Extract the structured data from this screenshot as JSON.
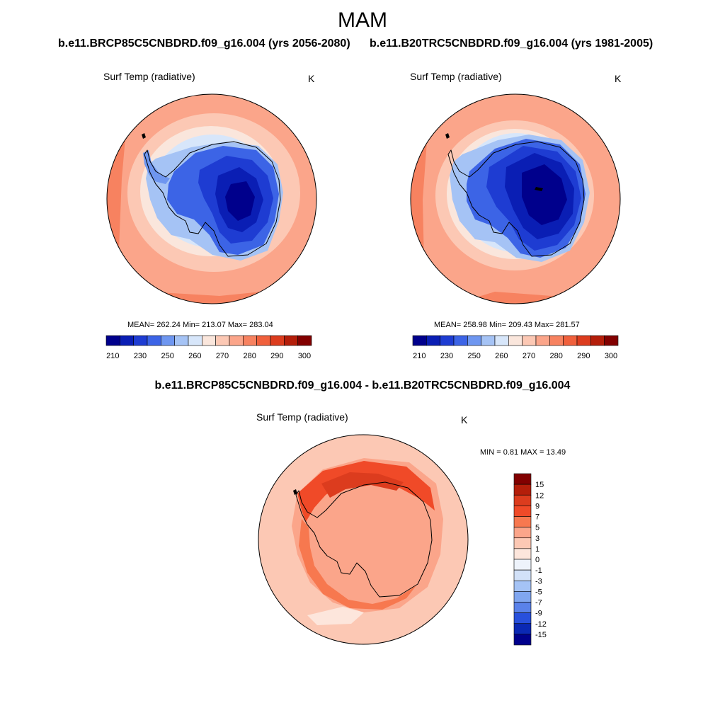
{
  "page": {
    "title": "MAM"
  },
  "panel_left": {
    "case_title": "b.e11.BRCP85C5CNBDRD.f09_g16.004 (yrs 2056-2080)",
    "variable": "Surf Temp (radiative)",
    "units": "K",
    "stats": "MEAN= 262.24  Min= 213.07  Max= 283.04"
  },
  "panel_right": {
    "case_title": "b.e11.B20TRC5CNBDRD.f09_g16.004 (yrs 1981-2005)",
    "variable": "Surf Temp (radiative)",
    "units": "K",
    "stats": "MEAN= 258.98  Min= 209.43  Max= 281.57"
  },
  "panel_diff": {
    "title": "b.e11.BRCP85C5CNBDRD.f09_g16.004 - b.e11.B20TRC5CNBDRD.f09_g16.004",
    "variable": "Surf Temp (radiative)",
    "units": "K",
    "stats": "MIN =   0.81 MAX =  13.49"
  },
  "colorbar_abs": {
    "labels": [
      "210",
      "230",
      "250",
      "260",
      "270",
      "280",
      "290",
      "300"
    ],
    "colors": [
      "#00008c",
      "#0a1eb4",
      "#1e3cd2",
      "#3c64e6",
      "#6e96f0",
      "#a5c3f5",
      "#d7e6fa",
      "#fae6dc",
      "#fcc8b4",
      "#fba58a",
      "#f78260",
      "#f0603c",
      "#dc3c1e",
      "#b41e0a",
      "#820000"
    ]
  },
  "colorbar_diff": {
    "labels": [
      "15",
      "12",
      "9",
      "7",
      "5",
      "3",
      "1",
      "0",
      "-1",
      "-3",
      "-5",
      "-7",
      "-9",
      "-12",
      "-15"
    ],
    "colors": [
      "#820000",
      "#b41e0a",
      "#dc3c1e",
      "#f04a28",
      "#f7784f",
      "#fba58a",
      "#fcc8b4",
      "#fde6dc",
      "#eef3fb",
      "#d2e1f8",
      "#a5c3f5",
      "#80a6f0",
      "#5a82ea",
      "#2850dc",
      "#0a28b4",
      "#00008c"
    ]
  }
}
